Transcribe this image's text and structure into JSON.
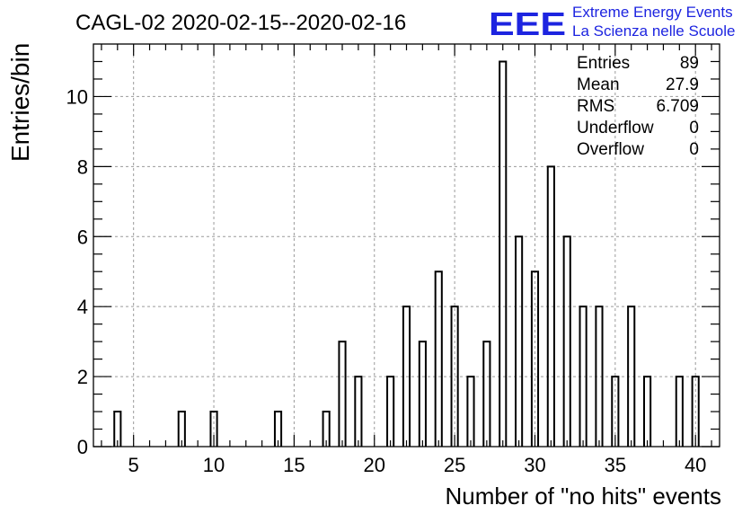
{
  "chart_data": {
    "type": "bar",
    "title": "CAGL-02 2020-02-15--2020-02-16",
    "xlabel": "Number of \"no hits\" events",
    "ylabel": "Entries/bin",
    "xlim": [
      2.5,
      41.5
    ],
    "ylim": [
      0,
      11.5
    ],
    "grid": true,
    "x_ticks": [
      5,
      10,
      15,
      20,
      25,
      30,
      35,
      40
    ],
    "y_ticks": [
      0,
      2,
      4,
      6,
      8,
      10
    ],
    "bins": [
      {
        "x": 4,
        "value": 1
      },
      {
        "x": 8,
        "value": 1
      },
      {
        "x": 10,
        "value": 1
      },
      {
        "x": 14,
        "value": 1
      },
      {
        "x": 17,
        "value": 1
      },
      {
        "x": 18,
        "value": 3
      },
      {
        "x": 19,
        "value": 2
      },
      {
        "x": 21,
        "value": 2
      },
      {
        "x": 22,
        "value": 4
      },
      {
        "x": 23,
        "value": 3
      },
      {
        "x": 24,
        "value": 5
      },
      {
        "x": 25,
        "value": 4
      },
      {
        "x": 26,
        "value": 2
      },
      {
        "x": 27,
        "value": 3
      },
      {
        "x": 28,
        "value": 11
      },
      {
        "x": 29,
        "value": 6
      },
      {
        "x": 30,
        "value": 5
      },
      {
        "x": 31,
        "value": 8
      },
      {
        "x": 32,
        "value": 6
      },
      {
        "x": 33,
        "value": 4
      },
      {
        "x": 34,
        "value": 4
      },
      {
        "x": 35,
        "value": 2
      },
      {
        "x": 36,
        "value": 4
      },
      {
        "x": 37,
        "value": 2
      },
      {
        "x": 39,
        "value": 2
      },
      {
        "x": 40,
        "value": 2
      }
    ],
    "stats": [
      {
        "label": "Entries",
        "value": "89"
      },
      {
        "label": "Mean",
        "value": "27.9"
      },
      {
        "label": "RMS",
        "value": "6.709"
      },
      {
        "label": "Underflow",
        "value": "0"
      },
      {
        "label": "Overflow",
        "value": "0"
      }
    ]
  },
  "logo": {
    "mark": "EEE",
    "line1": "Extreme Energy Events",
    "line2": "La Scienza nelle Scuole"
  },
  "colors": {
    "logo": "#1d24e0",
    "bar_outline": "#000000",
    "grid": "#9a9a9a"
  }
}
